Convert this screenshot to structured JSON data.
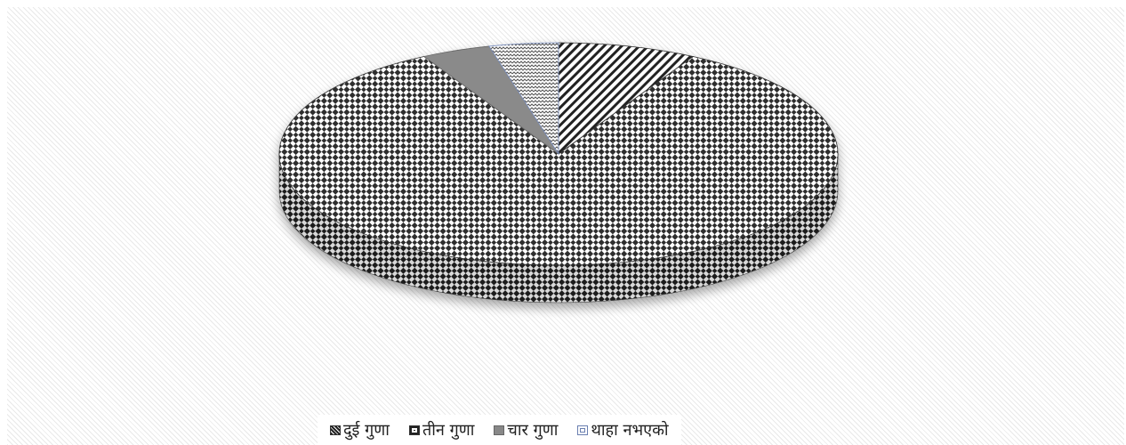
{
  "chart_data": {
    "type": "pie",
    "style": "3d",
    "title": "",
    "categories": [
      "दुई गुणा",
      "तीन गुणा",
      "चार गुणा",
      "थाहा नभएको"
    ],
    "values": [
      8,
      84,
      4,
      4
    ],
    "unit": "",
    "legend_position": "bottom",
    "colors": [
      "#222222",
      "#3a3a3a",
      "#888888",
      "#6a7fb0"
    ],
    "patterns": [
      "diagonal-stripes",
      "checkerboard",
      "solid-gray",
      "zigzag"
    ]
  }
}
